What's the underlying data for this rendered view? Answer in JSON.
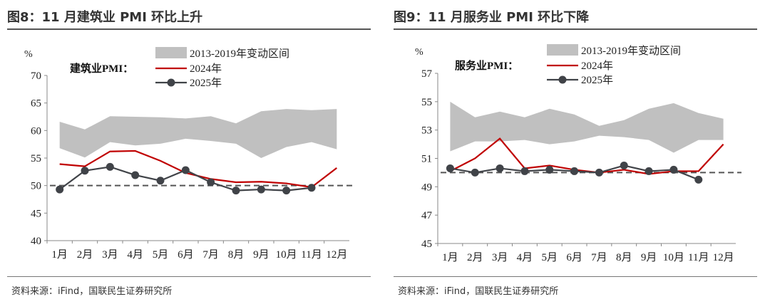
{
  "source": "资料来源：iFind，国联民生证券研究所",
  "chart_data": [
    {
      "type": "line",
      "title": "图8：11 月建筑业 PMI 环比上升",
      "ylabel": "%",
      "inner_label": "建筑业PMI：",
      "ylim": [
        40,
        70
      ],
      "yticks": [
        40,
        45,
        50,
        55,
        60,
        65,
        70
      ],
      "categories": [
        "1月",
        "2月",
        "3月",
        "4月",
        "5月",
        "6月",
        "7月",
        "8月",
        "9月",
        "10月",
        "11月",
        "12月"
      ],
      "band": {
        "name": "2013-2019年变动区间",
        "color": "#c0c0c0",
        "upper": [
          61.6,
          60.2,
          62.6,
          62.5,
          62.4,
          62.2,
          62.6,
          61.3,
          63.5,
          63.9,
          63.7,
          63.9
        ],
        "lower": [
          56.8,
          55.1,
          57.9,
          57.3,
          57.6,
          58.5,
          58.1,
          57.6,
          55.0,
          57.0,
          57.9,
          56.6
        ]
      },
      "series": [
        {
          "name": "2024年",
          "color": "#c00000",
          "values": [
            53.9,
            53.5,
            56.2,
            56.3,
            54.5,
            52.3,
            51.2,
            50.6,
            50.7,
            50.4,
            49.7,
            53.2
          ]
        },
        {
          "name": "2025年",
          "color": "#404348",
          "values": [
            49.3,
            52.7,
            53.4,
            51.9,
            50.9,
            52.8,
            50.6,
            49.1,
            49.3,
            49.1,
            49.6,
            null
          ]
        }
      ],
      "reference_line": 50
    },
    {
      "type": "line",
      "title": "图9：11 月服务业 PMI 环比下降",
      "ylabel": "%",
      "inner_label": "服务业PMI：",
      "ylim": [
        45,
        57
      ],
      "yticks": [
        45,
        47,
        49,
        51,
        53,
        55,
        57
      ],
      "categories": [
        "1月",
        "2月",
        "3月",
        "4月",
        "5月",
        "6月",
        "7月",
        "8月",
        "9月",
        "10月",
        "11月",
        "12月"
      ],
      "band": {
        "name": "2013-2019年变动区间",
        "color": "#c0c0c0",
        "upper": [
          55.0,
          53.9,
          54.3,
          53.9,
          54.5,
          54.1,
          53.3,
          53.7,
          54.5,
          54.9,
          54.2,
          53.8
        ],
        "lower": [
          51.5,
          52.2,
          52.2,
          52.3,
          52.0,
          52.2,
          52.6,
          52.5,
          52.3,
          51.4,
          52.3,
          52.3
        ]
      },
      "series": [
        {
          "name": "2024年",
          "color": "#c00000",
          "values": [
            50.1,
            51.0,
            52.4,
            50.3,
            50.5,
            50.2,
            50.0,
            50.2,
            49.9,
            50.1,
            50.1,
            52.0
          ]
        },
        {
          "name": "2025年",
          "color": "#404348",
          "values": [
            50.3,
            50.0,
            50.3,
            50.1,
            50.2,
            50.1,
            50.0,
            50.5,
            50.1,
            50.2,
            49.5,
            null
          ]
        }
      ],
      "reference_line": 50
    }
  ]
}
